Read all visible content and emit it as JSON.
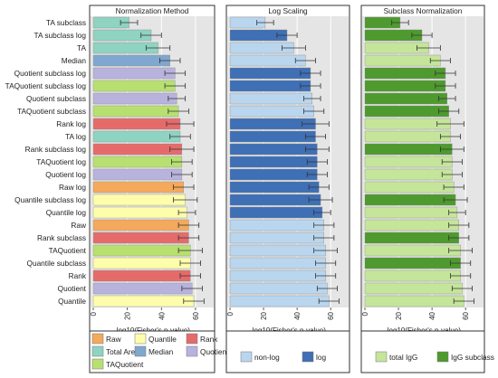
{
  "chart_data": {
    "type": "bar",
    "orientation": "horizontal",
    "categories": [
      "TA subclass",
      "TA subclass log",
      "TA",
      "Median",
      "Quotient subclass log",
      "TAQuotient subclass log",
      "Quotient subclass",
      "TAQuotient subclass",
      "Rank log",
      "TA log",
      "Rank subclass log",
      "TAQuotient log",
      "Quotient log",
      "Raw log",
      "Quantile subclass log",
      "Quantile log",
      "Raw",
      "Rank subclass",
      "TAQuotient",
      "Quantile subclass",
      "Rank",
      "Quotient",
      "Quantile"
    ],
    "values": [
      21,
      34,
      38,
      45,
      48,
      48,
      49,
      50,
      51,
      51,
      52,
      52,
      52,
      53,
      54,
      55,
      56,
      56,
      57,
      57,
      57,
      58,
      59
    ],
    "error": [
      5,
      6,
      7,
      6,
      6,
      6,
      5,
      6,
      8,
      6,
      7,
      6,
      6,
      6,
      7,
      5,
      6,
      6,
      7,
      6,
      6,
      6,
      6
    ],
    "xlabel": "-log10(Fisher's p-value)",
    "xlim": [
      0,
      68
    ],
    "xticks": [
      0,
      20,
      40,
      60
    ],
    "grid": true,
    "panels": [
      {
        "title": "Normalization Method",
        "group_of_row": [
          "TA",
          "TA",
          "TA",
          "Median",
          "Quotient",
          "TAQuotient",
          "Quotient",
          "TAQuotient",
          "Rank",
          "TA",
          "Rank",
          "TAQuotient",
          "Quotient",
          "Raw",
          "Quantile",
          "Quantile",
          "Raw",
          "Rank",
          "TAQuotient",
          "Quantile",
          "Rank",
          "Quotient",
          "Quantile"
        ],
        "legend": [
          {
            "label": "Raw",
            "key": "Raw"
          },
          {
            "label": "Quantile",
            "key": "Quantile"
          },
          {
            "label": "Rank",
            "key": "Rank"
          },
          {
            "label": "Total Area",
            "key": "TA"
          },
          {
            "label": "Median",
            "key": "Median"
          },
          {
            "label": "Quotient",
            "key": "Quotient"
          },
          {
            "label": "TAQuotient",
            "key": "TAQuotient"
          }
        ],
        "colors": {
          "Raw": "#f4a95c",
          "Quantile": "#fdfdab",
          "Rank": "#e56b6b",
          "TA": "#8fd3c1",
          "Median": "#7fa7cf",
          "Quotient": "#b8b3dd",
          "TAQuotient": "#b7e070"
        }
      },
      {
        "title": "Log Scaling",
        "group_of_row": [
          "nonlog",
          "log",
          "nonlog",
          "nonlog",
          "log",
          "log",
          "nonlog",
          "nonlog",
          "log",
          "log",
          "log",
          "log",
          "log",
          "log",
          "log",
          "log",
          "nonlog",
          "nonlog",
          "nonlog",
          "nonlog",
          "nonlog",
          "nonlog",
          "nonlog"
        ],
        "legend": [
          {
            "label": "non-log",
            "key": "nonlog"
          },
          {
            "label": "log",
            "key": "log"
          }
        ],
        "colors": {
          "nonlog": "#b9d6ee",
          "log": "#3f6fb5"
        }
      },
      {
        "title": "Subclass Normalization",
        "group_of_row": [
          "sub",
          "sub",
          "total",
          "total",
          "sub",
          "sub",
          "sub",
          "sub",
          "total",
          "total",
          "sub",
          "total",
          "total",
          "total",
          "sub",
          "total",
          "total",
          "sub",
          "total",
          "sub",
          "total",
          "total",
          "total"
        ],
        "legend": [
          {
            "label": "total IgG",
            "key": "total"
          },
          {
            "label": "IgG subclass",
            "key": "sub"
          }
        ],
        "colors": {
          "total": "#c5e59a",
          "sub": "#4e9a2e"
        }
      }
    ]
  }
}
